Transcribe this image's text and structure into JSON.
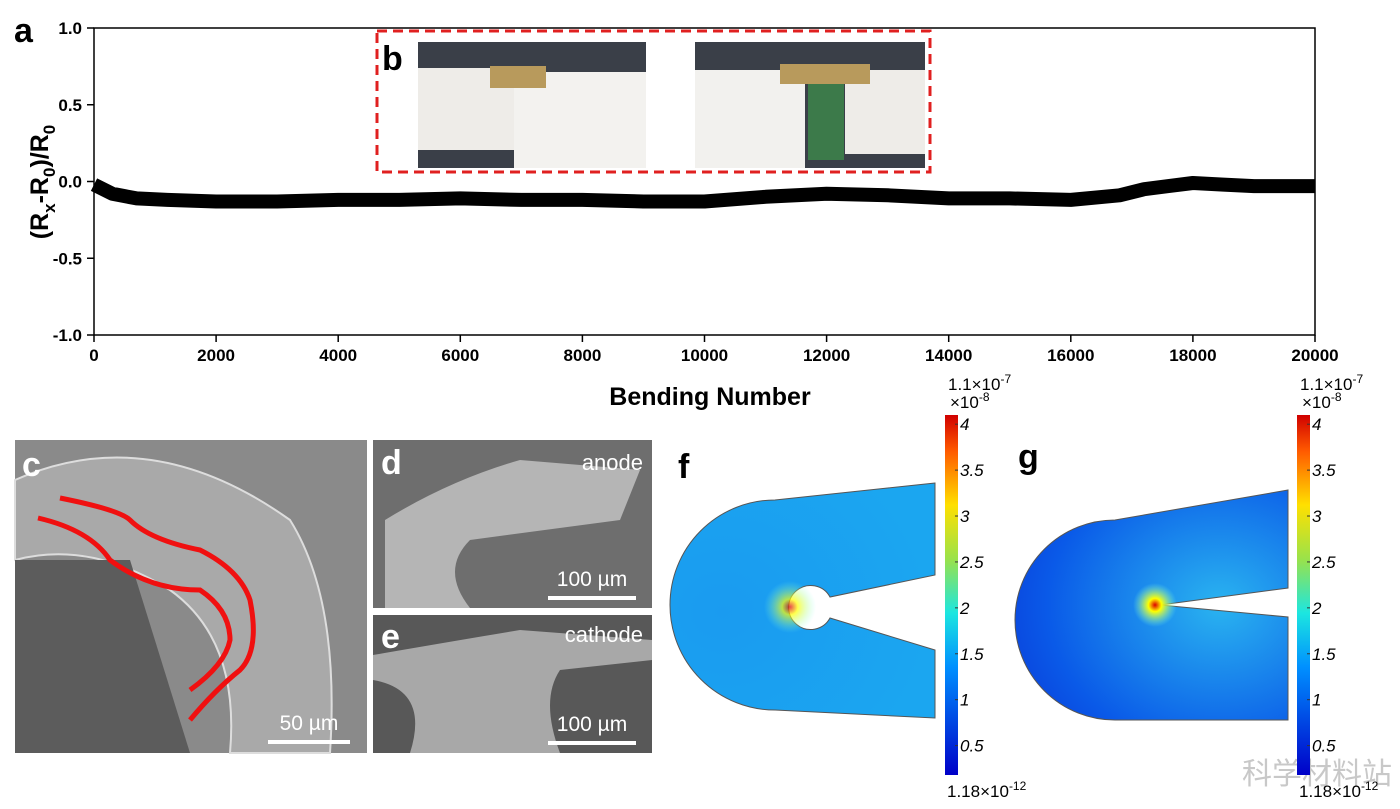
{
  "chart_data": [
    {
      "type": "line",
      "y_label": [
        "(R",
        "x",
        "-R",
        "0",
        ")/R",
        "0"
      ],
      "x_label": "Bending Number",
      "x": [
        0,
        300,
        700,
        1200,
        2000,
        3000,
        4000,
        5000,
        6000,
        7000,
        8000,
        9000,
        10000,
        11000,
        12000,
        13000,
        14000,
        15000,
        16000,
        16800,
        17200,
        17600,
        18000,
        18500,
        19000,
        19500,
        20000
      ],
      "values": [
        -0.02,
        -0.08,
        -0.11,
        -0.12,
        -0.13,
        -0.13,
        -0.12,
        -0.12,
        -0.11,
        -0.12,
        -0.12,
        -0.13,
        -0.13,
        -0.1,
        -0.08,
        -0.09,
        -0.11,
        -0.11,
        -0.12,
        -0.09,
        -0.05,
        -0.03,
        -0.01,
        -0.02,
        -0.03,
        -0.03,
        -0.03
      ],
      "color": "#000000",
      "xlim": [
        0,
        20000
      ],
      "xticks": [
        0,
        2000,
        4000,
        6000,
        8000,
        10000,
        12000,
        14000,
        16000,
        18000,
        20000
      ],
      "ylim": [
        -1,
        1
      ],
      "yticks": [
        {
          "value": -1,
          "label": "-1.0"
        },
        -0.5,
        {
          "value": 0,
          "label": "0.0"
        },
        0.5,
        {
          "value": 1,
          "label": "1.0"
        }
      ]
    },
    {
      "type": "colorbar",
      "ylim": [
        0.18,
        4.1
      ],
      "yticks": [
        0.5,
        1,
        1.5,
        2,
        2.5,
        3,
        3.5,
        4
      ],
      "max_label": [
        "1.1×10",
        "-7"
      ],
      "scale_label": [
        "×10",
        "-8"
      ],
      "min_label": [
        "1.18×10",
        "-12"
      ]
    },
    {
      "type": "colorbar",
      "ylim": [
        0.18,
        4.1
      ],
      "yticks": [
        0.5,
        1,
        1.5,
        2,
        2.5,
        3,
        3.5,
        4
      ],
      "max_label": [
        "1.1×10",
        "-7"
      ],
      "scale_label": [
        "×10",
        "-8"
      ],
      "min_label": [
        "1.18×10",
        "-12"
      ]
    }
  ],
  "panel_labels": [
    "a",
    "b",
    "c",
    "d",
    "e",
    "f",
    "g"
  ],
  "annotations": {
    "anode": "anode",
    "cathode": "cathode",
    "scale_c": "50 µm",
    "scale_d": "100 µm",
    "scale_e": "100 µm"
  },
  "watermark": "科学材料站"
}
